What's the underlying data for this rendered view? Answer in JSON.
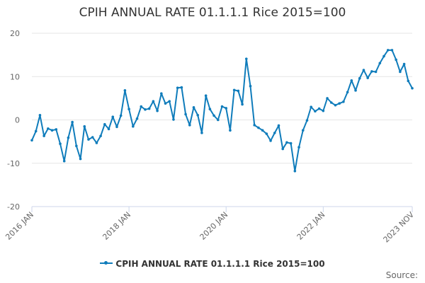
{
  "chart_data": {
    "type": "line",
    "title": "CPIH ANNUAL RATE 01.1.1.1 Rice 2015=100",
    "xlabel": "",
    "ylabel": "",
    "ylim": [
      -20,
      20
    ],
    "yticks": [
      -20,
      -10,
      0,
      10,
      20
    ],
    "xtick_labels": [
      "2016 JAN",
      "2018 JAN",
      "2020 JAN",
      "2022 JAN",
      "2023 NOV"
    ],
    "x_start": "2016 JAN",
    "x_end": "2023 NOV",
    "grid": true,
    "legend": "bottom",
    "color": "#0f7cbb",
    "series": [
      {
        "name": "CPIH ANNUAL RATE 01.1.1.1 Rice 2015=100",
        "values": [
          -4.7,
          -2.6,
          1.1,
          -3.7,
          -2.0,
          -2.4,
          -2.2,
          -5.5,
          -9.5,
          -4.1,
          -0.5,
          -6.0,
          -9.0,
          -1.5,
          -4.5,
          -4.0,
          -5.3,
          -3.7,
          -1.0,
          -2.1,
          0.7,
          -1.6,
          1.0,
          6.8,
          2.5,
          -1.5,
          0.3,
          3.1,
          2.4,
          2.6,
          4.3,
          2.1,
          6.1,
          3.8,
          4.3,
          0.1,
          7.4,
          7.5,
          1.3,
          -1.2,
          2.9,
          1.1,
          -3.0,
          5.6,
          2.5,
          1.0,
          0.0,
          3.1,
          2.7,
          -2.4,
          6.9,
          6.7,
          3.6,
          14.1,
          7.8,
          -1.2,
          -1.8,
          -2.4,
          -3.2,
          -4.8,
          -3.0,
          -1.3,
          -6.7,
          -5.2,
          -5.4,
          -11.8,
          -6.3,
          -2.4,
          -0.1,
          3.0,
          2.0,
          2.6,
          2.1,
          5.0,
          4.0,
          3.4,
          3.8,
          4.2,
          6.4,
          9.1,
          6.8,
          9.6,
          11.5,
          9.7,
          11.2,
          11.1,
          13.1,
          14.7,
          16.1,
          16.1,
          13.9,
          11.1,
          12.9,
          9.0,
          7.3
        ]
      }
    ]
  },
  "footer": {
    "credit": "Source:"
  }
}
